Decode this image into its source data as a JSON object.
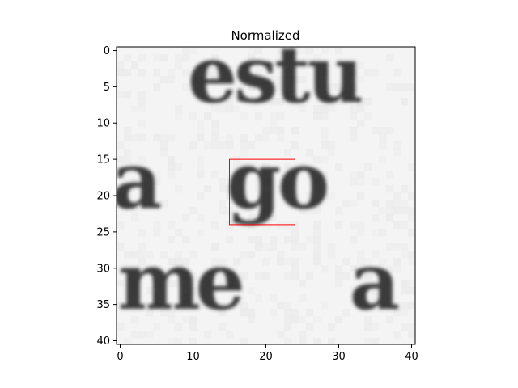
{
  "chart_data": {
    "type": "heatmap",
    "title": "Normalized",
    "xlabel": "",
    "ylabel": "",
    "x_range": [
      -0.5,
      40.5
    ],
    "y_range": [
      -0.5,
      40.5
    ],
    "y_inverted": true,
    "x_ticks": [
      0,
      10,
      20,
      30,
      40
    ],
    "y_ticks": [
      0,
      5,
      10,
      15,
      20,
      25,
      30,
      35,
      40
    ],
    "colormap": "gray",
    "grid": false,
    "highlight_box": {
      "x0": 15,
      "y0": 15,
      "x1": 24,
      "y1": 24,
      "color": "#ff0000"
    },
    "image_content": "text crop: 'estu' / 'a go' / 'me a'"
  }
}
